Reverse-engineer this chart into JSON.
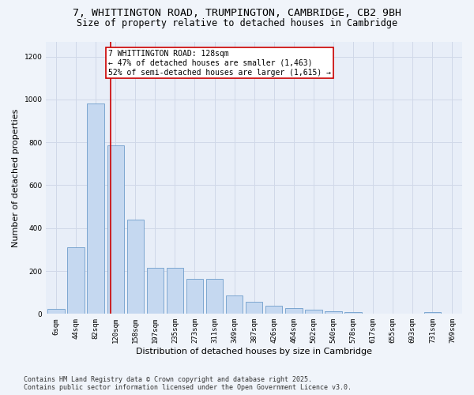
{
  "title_line1": "7, WHITTINGTON ROAD, TRUMPINGTON, CAMBRIDGE, CB2 9BH",
  "title_line2": "Size of property relative to detached houses in Cambridge",
  "xlabel": "Distribution of detached houses by size in Cambridge",
  "ylabel": "Number of detached properties",
  "categories": [
    "6sqm",
    "44sqm",
    "82sqm",
    "120sqm",
    "158sqm",
    "197sqm",
    "235sqm",
    "273sqm",
    "311sqm",
    "349sqm",
    "387sqm",
    "426sqm",
    "464sqm",
    "502sqm",
    "540sqm",
    "578sqm",
    "617sqm",
    "655sqm",
    "693sqm",
    "731sqm",
    "769sqm"
  ],
  "values": [
    22,
    310,
    980,
    785,
    440,
    215,
    215,
    165,
    165,
    85,
    55,
    38,
    28,
    18,
    13,
    10,
    0,
    0,
    0,
    8,
    0
  ],
  "bar_color": "#c5d8f0",
  "bar_edge_color": "#5a8fc3",
  "bar_edge_width": 0.5,
  "annotation_text_line1": "7 WHITTINGTON ROAD: 128sqm",
  "annotation_text_line2": "← 47% of detached houses are smaller (1,463)",
  "annotation_text_line3": "52% of semi-detached houses are larger (1,615) →",
  "annotation_box_color": "#ffffff",
  "annotation_box_edge_color": "#cc0000",
  "vline_color": "#cc0000",
  "vline_index": 3,
  "ylim": [
    0,
    1270
  ],
  "yticks": [
    0,
    200,
    400,
    600,
    800,
    1000,
    1200
  ],
  "grid_color": "#d0d8e8",
  "plot_bg_color": "#e8eef8",
  "fig_bg_color": "#f0f4fa",
  "footer_line1": "Contains HM Land Registry data © Crown copyright and database right 2025.",
  "footer_line2": "Contains public sector information licensed under the Open Government Licence v3.0.",
  "title_fontsize": 9.5,
  "subtitle_fontsize": 8.5,
  "axis_label_fontsize": 8,
  "tick_fontsize": 6.5,
  "annotation_fontsize": 7,
  "footer_fontsize": 6
}
